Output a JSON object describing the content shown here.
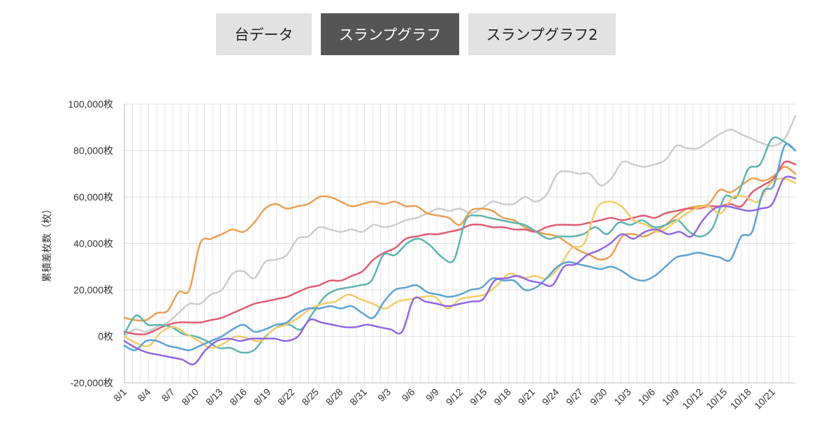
{
  "tabs": [
    {
      "label": "台データ",
      "active": false
    },
    {
      "label": "スランプグラフ",
      "active": true
    },
    {
      "label": "スランプグラフ2",
      "active": false
    }
  ],
  "chart_data": {
    "type": "line",
    "ylabel": "累積差枚数（枚）",
    "ylim": [
      -20000,
      100000
    ],
    "yticks": [
      -20000,
      0,
      20000,
      40000,
      60000,
      80000,
      100000
    ],
    "ytick_labels": [
      "-20,000枚",
      "0枚",
      "20,000枚",
      "40,000枚",
      "60,000枚",
      "80,000枚",
      "100,000枚"
    ],
    "x_range_days": [
      0,
      83.8
    ],
    "xtick_labels": [
      "8/1",
      "8/4",
      "8/7",
      "8/10",
      "8/13",
      "8/16",
      "8/19",
      "8/22",
      "8/25",
      "8/28",
      "8/31",
      "9/3",
      "9/6",
      "9/9",
      "9/12",
      "9/15",
      "9/18",
      "9/21",
      "9/24",
      "9/27",
      "9/30",
      "10/3",
      "10/6",
      "10/9",
      "10/12",
      "10/15",
      "10/18",
      "10/21"
    ],
    "grid": true,
    "legend": "none",
    "series": [
      {
        "color": "#cccccc",
        "values": [
          0,
          3000,
          2000,
          4000,
          6000,
          10000,
          14000,
          14000,
          18000,
          20000,
          27000,
          28000,
          25000,
          32000,
          33000,
          35000,
          42000,
          43000,
          47000,
          46000,
          45000,
          46000,
          45000,
          48000,
          47000,
          48000,
          50000,
          51000,
          53000,
          55000,
          54000,
          55000,
          53000,
          55000,
          58000,
          57000,
          57000,
          60000,
          58000,
          61000,
          70000,
          71000,
          70000,
          70000,
          65000,
          68000,
          75000,
          74000,
          73000,
          74000,
          76000,
          82000,
          81000,
          81000,
          84000,
          87000,
          89000,
          87000,
          85000,
          83000,
          82000,
          85000,
          95000
        ]
      },
      {
        "color": "#e9a050",
        "values": [
          8000,
          7000,
          7000,
          10000,
          11000,
          19000,
          20000,
          40000,
          42000,
          44000,
          46000,
          45000,
          49000,
          55000,
          57000,
          55000,
          56000,
          57000,
          60000,
          60000,
          58000,
          56000,
          57000,
          58000,
          57000,
          58000,
          56000,
          56000,
          53000,
          52000,
          51000,
          48000,
          54000,
          55000,
          54000,
          51000,
          50000,
          47000,
          45000,
          44000,
          43000,
          40000,
          37000,
          35000,
          33000,
          35000,
          43000,
          44000,
          43000,
          45000,
          48000,
          52000,
          55000,
          56000,
          57000,
          63000,
          62000,
          65000,
          68000,
          67000,
          69000,
          73000,
          70000
        ]
      },
      {
        "color": "#e05c74",
        "values": [
          2000,
          1000,
          1000,
          3000,
          5000,
          6000,
          6000,
          6000,
          7000,
          8000,
          10000,
          12000,
          14000,
          15000,
          16000,
          17000,
          19000,
          21000,
          22000,
          24000,
          24000,
          26000,
          28000,
          33000,
          36000,
          38000,
          42000,
          43000,
          44000,
          44000,
          45000,
          46000,
          48000,
          48000,
          47000,
          47000,
          46000,
          46000,
          45000,
          47000,
          48000,
          48000,
          48000,
          49000,
          50000,
          51000,
          50000,
          51000,
          52000,
          51000,
          53000,
          54000,
          55000,
          55000,
          56000,
          56000,
          57000,
          56000,
          62000,
          65000,
          68000,
          75000,
          74000
        ]
      },
      {
        "color": "#5bb5b0",
        "values": [
          1000,
          9000,
          5000,
          5000,
          4000,
          1000,
          0,
          -2000,
          -5000,
          -5000,
          -7000,
          -6000,
          0,
          4000,
          5000,
          3000,
          10000,
          17000,
          20000,
          21000,
          22000,
          24000,
          35000,
          35000,
          40000,
          42000,
          39000,
          34000,
          33000,
          50000,
          52000,
          51000,
          50000,
          49000,
          48000,
          45000,
          42000,
          43000,
          43000,
          44000,
          47000,
          44000,
          49000,
          48000,
          50000,
          47000,
          48000,
          50000,
          45000,
          43000,
          47000,
          60000,
          60000,
          72000,
          74000,
          85000,
          84000,
          80000
        ]
      },
      {
        "color": "#f2cc66",
        "values": [
          0,
          -3000,
          -4000,
          2000,
          4000,
          1000,
          -2000,
          -5000,
          -3000,
          0,
          -1000,
          -2000,
          3000,
          5000,
          8000,
          12000,
          14000,
          15000,
          18000,
          16000,
          14000,
          12000,
          15000,
          16000,
          17000,
          17000,
          12000,
          16000,
          17000,
          18000,
          22000,
          27000,
          25000,
          26000,
          25000,
          30000,
          38000,
          40000,
          55000,
          58000,
          56000,
          50000,
          48000,
          45000,
          48000,
          52000,
          55000,
          56000,
          53000,
          60000,
          60000,
          58000,
          66000,
          68000,
          66000
        ]
      },
      {
        "color": "#5aa3d6",
        "values": [
          -4000,
          -6000,
          -2000,
          -2000,
          -4000,
          -5000,
          -6000,
          -4000,
          -2000,
          0,
          3000,
          5000,
          2000,
          3000,
          5000,
          6000,
          10000,
          12000,
          12000,
          13000,
          12000,
          13000,
          10000,
          8000,
          15000,
          20000,
          21000,
          22000,
          19000,
          18000,
          17000,
          18000,
          20000,
          21000,
          25000,
          24000,
          24000,
          20000,
          21000,
          25000,
          30000,
          32000,
          31000,
          30000,
          29000,
          30000,
          28000,
          25000,
          24000,
          26000,
          30000,
          34000,
          35000,
          36000,
          35000,
          34000,
          33000,
          43000,
          45000,
          62000,
          65000,
          82000,
          80000
        ]
      },
      {
        "color": "#9266e3",
        "values": [
          -2000,
          -5000,
          -7000,
          -8000,
          -9000,
          -10000,
          -12000,
          -6000,
          -2000,
          -1000,
          -2000,
          -1000,
          -1000,
          -1000,
          -2000,
          0,
          7000,
          6000,
          5000,
          4000,
          4000,
          5000,
          4000,
          3000,
          2000,
          16000,
          15000,
          14000,
          13000,
          14000,
          15000,
          16000,
          24000,
          25000,
          26000,
          24000,
          23000,
          22000,
          30000,
          31000,
          35000,
          37000,
          40000,
          44000,
          42000,
          45000,
          46000,
          44000,
          45000,
          43000,
          50000,
          55000,
          56000,
          55000,
          54000,
          55000,
          57000,
          68000,
          68000
        ]
      }
    ]
  }
}
